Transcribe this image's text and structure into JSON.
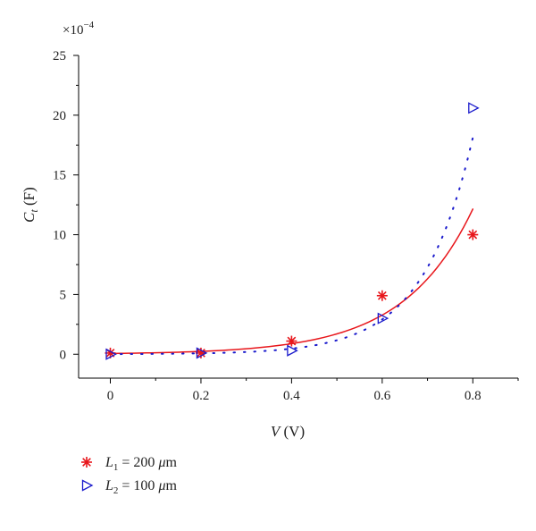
{
  "chart_data": {
    "type": "scatter",
    "title": "",
    "xlabel": "V (V)",
    "ylabel": "C_t (F)",
    "y_multiplier": "×10^−4",
    "xlim": [
      -0.07,
      0.9
    ],
    "ylim": [
      -2,
      25
    ],
    "xticks": [
      0,
      0.2,
      0.4,
      0.6,
      0.8
    ],
    "xtick_labels": [
      "0",
      "0.2",
      "0.4",
      "0.6",
      "0.8"
    ],
    "yticks": [
      0,
      5,
      10,
      15,
      20,
      25
    ],
    "ytick_labels": [
      "0",
      "5",
      "10",
      "15",
      "20",
      "25"
    ],
    "grid": false,
    "legend_position": "bottom-left",
    "series": [
      {
        "name": "L1 = 200 μm",
        "marker": "asterisk",
        "fit_line": "solid",
        "color": "#e8161b",
        "x": [
          0,
          0.2,
          0.4,
          0.6,
          0.8
        ],
        "y": [
          0.1,
          0.1,
          1.1,
          4.9,
          10.0
        ]
      },
      {
        "name": "L2 = 100 μm",
        "marker": "triangle-right",
        "fit_line": "dotted",
        "color": "#1a1acc",
        "x": [
          0,
          0.2,
          0.4,
          0.6,
          0.8
        ],
        "y": [
          0.0,
          0.1,
          0.3,
          3.0,
          20.6
        ]
      }
    ]
  }
}
